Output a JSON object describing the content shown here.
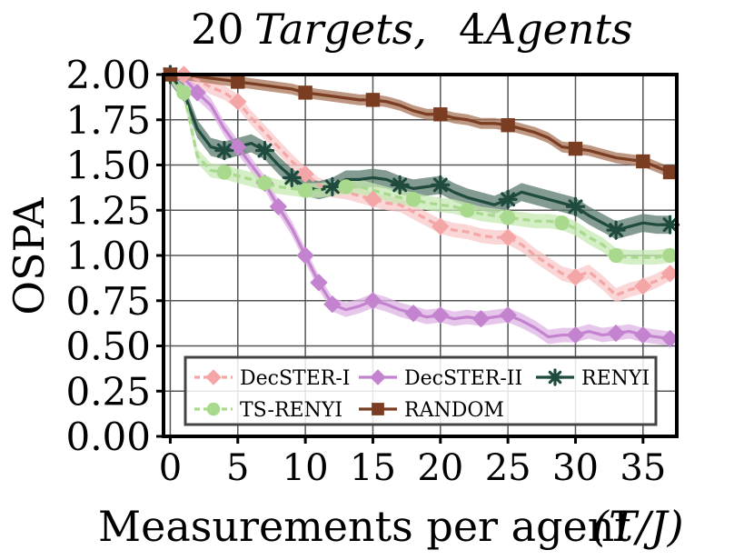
{
  "chart_data": {
    "type": "line",
    "title_parts": {
      "targets_num": "20",
      "targets_word": "Targets,",
      "agents_num": "4",
      "agents_word": "Agents"
    },
    "xlabel": "Measurements per agent",
    "xlabel_math": "(T/J)",
    "ylabel": "OSPA",
    "xlim": [
      -0.5,
      37.5
    ],
    "ylim": [
      0,
      2.0
    ],
    "xticks": [
      0,
      5,
      10,
      15,
      20,
      25,
      30,
      35
    ],
    "yticks": [
      0,
      0.25,
      0.5,
      0.75,
      1.0,
      1.25,
      1.5,
      1.75,
      2.0
    ],
    "ytick_labels": [
      "0.00",
      "0.25",
      "0.50",
      "0.75",
      "1.00",
      "1.25",
      "1.50",
      "1.75",
      "2.00"
    ],
    "grid": true,
    "legend_position": "bottom",
    "series": [
      {
        "name": "DecSTER-I",
        "color": "#f4a6a6",
        "band_color": "#f8c8c8",
        "dash": "8,5",
        "marker": "diamond",
        "x": [
          0,
          1,
          2,
          3,
          4,
          5,
          6,
          7,
          8,
          9,
          10,
          11,
          12,
          13,
          14,
          15,
          16,
          17,
          18,
          19,
          20,
          21,
          22,
          23,
          24,
          25,
          26,
          27,
          28,
          29,
          30,
          31,
          32,
          33,
          34,
          35,
          36,
          37
        ],
        "y": [
          2.0,
          2.0,
          1.97,
          1.93,
          1.9,
          1.85,
          1.76,
          1.68,
          1.6,
          1.52,
          1.45,
          1.39,
          1.36,
          1.35,
          1.33,
          1.31,
          1.29,
          1.28,
          1.24,
          1.2,
          1.16,
          1.14,
          1.13,
          1.11,
          1.1,
          1.1,
          1.06,
          1.0,
          0.95,
          0.9,
          0.88,
          0.91,
          0.85,
          0.78,
          0.81,
          0.83,
          0.86,
          0.9
        ],
        "band": 0.04,
        "marker_x": [
          0,
          1,
          5,
          10,
          15,
          20,
          25,
          30,
          35,
          37
        ]
      },
      {
        "name": "DecSTER-II",
        "color": "#c483cf",
        "band_color": "#ddb3e3",
        "dash": "",
        "marker": "diamond",
        "x": [
          0,
          1,
          2,
          3,
          4,
          5,
          6,
          7,
          8,
          9,
          10,
          11,
          12,
          13,
          14,
          15,
          16,
          17,
          18,
          19,
          20,
          21,
          22,
          23,
          24,
          25,
          26,
          27,
          28,
          29,
          30,
          31,
          32,
          33,
          34,
          35,
          36,
          37
        ],
        "y": [
          2.0,
          1.98,
          1.9,
          1.83,
          1.7,
          1.6,
          1.5,
          1.4,
          1.27,
          1.15,
          1.0,
          0.85,
          0.73,
          0.7,
          0.72,
          0.75,
          0.73,
          0.7,
          0.68,
          0.66,
          0.67,
          0.65,
          0.66,
          0.65,
          0.66,
          0.67,
          0.64,
          0.6,
          0.55,
          0.56,
          0.56,
          0.58,
          0.56,
          0.57,
          0.58,
          0.56,
          0.55,
          0.54
        ],
        "band": 0.04,
        "marker_x": [
          0,
          2,
          5,
          7,
          8,
          10,
          11,
          12,
          15,
          18,
          20,
          23,
          25,
          30,
          33,
          35,
          37
        ]
      },
      {
        "name": "RENYI",
        "color": "#1f4a3e",
        "band_color": "#5a7a6c",
        "dash": "",
        "marker": "star",
        "x": [
          0,
          1,
          2,
          3,
          4,
          5,
          6,
          7,
          8,
          9,
          10,
          11,
          12,
          13,
          14,
          15,
          16,
          17,
          18,
          19,
          20,
          21,
          22,
          23,
          24,
          25,
          26,
          27,
          28,
          29,
          30,
          31,
          32,
          33,
          34,
          35,
          36,
          37
        ],
        "y": [
          2.0,
          1.9,
          1.7,
          1.6,
          1.58,
          1.6,
          1.62,
          1.58,
          1.5,
          1.43,
          1.38,
          1.36,
          1.38,
          1.42,
          1.42,
          1.43,
          1.42,
          1.39,
          1.37,
          1.38,
          1.39,
          1.35,
          1.32,
          1.3,
          1.28,
          1.31,
          1.35,
          1.33,
          1.31,
          1.29,
          1.27,
          1.22,
          1.18,
          1.14,
          1.16,
          1.18,
          1.17,
          1.17
        ],
        "band": 0.05,
        "marker_x": [
          0,
          4,
          7,
          9,
          12,
          17,
          20,
          25,
          30,
          33,
          37
        ]
      },
      {
        "name": "TS-RENYI",
        "color": "#a9d98c",
        "band_color": "#c6e8b1",
        "dash": "8,5",
        "marker": "circle",
        "x": [
          0,
          1,
          2,
          3,
          4,
          5,
          6,
          7,
          8,
          9,
          10,
          11,
          12,
          13,
          14,
          15,
          16,
          17,
          18,
          19,
          20,
          21,
          22,
          23,
          24,
          25,
          26,
          27,
          28,
          29,
          30,
          31,
          32,
          33,
          34,
          35,
          36,
          37
        ],
        "y": [
          2.0,
          1.9,
          1.55,
          1.47,
          1.46,
          1.44,
          1.42,
          1.4,
          1.38,
          1.37,
          1.36,
          1.36,
          1.37,
          1.38,
          1.38,
          1.36,
          1.34,
          1.32,
          1.31,
          1.29,
          1.28,
          1.27,
          1.25,
          1.23,
          1.22,
          1.21,
          1.2,
          1.19,
          1.19,
          1.18,
          1.15,
          1.1,
          1.06,
          1.0,
          0.99,
          0.99,
          0.99,
          1.0
        ],
        "band": 0.04,
        "marker_x": [
          1,
          4,
          7,
          10,
          13,
          18,
          22,
          25,
          29,
          33,
          37
        ]
      },
      {
        "name": "RANDOM",
        "color": "#7b3d22",
        "band_color": "#a87458",
        "dash": "",
        "marker": "square",
        "x": [
          0,
          1,
          2,
          3,
          4,
          5,
          6,
          7,
          8,
          9,
          10,
          11,
          12,
          13,
          14,
          15,
          16,
          17,
          18,
          19,
          20,
          21,
          22,
          23,
          24,
          25,
          26,
          27,
          28,
          29,
          30,
          31,
          32,
          33,
          34,
          35,
          36,
          37
        ],
        "y": [
          2.0,
          2.0,
          1.99,
          1.98,
          1.97,
          1.96,
          1.95,
          1.94,
          1.93,
          1.92,
          1.9,
          1.89,
          1.88,
          1.87,
          1.86,
          1.86,
          1.85,
          1.83,
          1.8,
          1.78,
          1.78,
          1.76,
          1.75,
          1.73,
          1.73,
          1.72,
          1.7,
          1.68,
          1.65,
          1.6,
          1.59,
          1.58,
          1.56,
          1.54,
          1.53,
          1.52,
          1.49,
          1.46
        ],
        "band": 0.03,
        "marker_x": [
          0,
          5,
          10,
          15,
          20,
          25,
          30,
          35,
          37
        ]
      }
    ],
    "legend_rows": [
      [
        "DecSTER-I",
        "DecSTER-II",
        "RENYI"
      ],
      [
        "TS-RENYI",
        "RANDOM"
      ]
    ]
  }
}
